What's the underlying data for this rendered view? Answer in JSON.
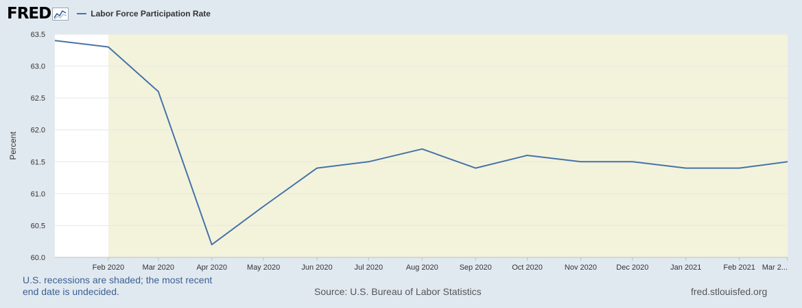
{
  "header": {
    "logo_text": "FRED",
    "legend_label": "Labor Force Participation Rate"
  },
  "footer": {
    "note": "U.S. recessions are shaded; the most recent end date is undecided.",
    "source": "Source: U.S. Bureau of Labor Statistics",
    "site": "fred.stlouisfed.org"
  },
  "colors": {
    "series": "#4572a7",
    "recession_shade": "#f3f3dc",
    "plot_bg": "#ffffff",
    "page_bg": "#e1e9f0"
  },
  "chart_data": {
    "type": "line",
    "ylabel": "Percent",
    "xlabel": "",
    "ylim": [
      60.0,
      63.5
    ],
    "yticks": [
      "60.0",
      "60.5",
      "61.0",
      "61.5",
      "62.0",
      "62.5",
      "63.0",
      "63.5"
    ],
    "xlim": [
      "2020-01-01",
      "2021-03-01"
    ],
    "xtick_labels": [
      "Feb 2020",
      "Mar 2020",
      "Apr 2020",
      "May 2020",
      "Jun 2020",
      "Jul 2020",
      "Aug 2020",
      "Sep 2020",
      "Oct 2020",
      "Nov 2020",
      "Dec 2020",
      "Jan 2021",
      "Feb 2021",
      "Mar 2..."
    ],
    "x": [
      "2020-01-01",
      "2020-02-01",
      "2020-03-01",
      "2020-04-01",
      "2020-05-01",
      "2020-06-01",
      "2020-07-01",
      "2020-08-01",
      "2020-09-01",
      "2020-10-01",
      "2020-11-01",
      "2020-12-01",
      "2021-01-01",
      "2021-02-01",
      "2021-03-01"
    ],
    "series": [
      {
        "name": "Labor Force Participation Rate",
        "values": [
          63.4,
          63.3,
          62.6,
          60.2,
          60.8,
          61.4,
          61.5,
          61.7,
          61.4,
          61.6,
          61.5,
          61.5,
          61.4,
          61.4,
          61.5
        ]
      }
    ],
    "recession_shading": {
      "start": "2020-02-01",
      "end": "2021-03-01"
    },
    "grid": true,
    "legend": "top-left"
  }
}
